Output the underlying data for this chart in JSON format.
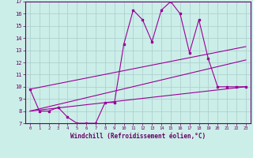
{
  "title": "",
  "xlabel": "Windchill (Refroidissement éolien,°C)",
  "ylabel": "",
  "background_color": "#cceee8",
  "grid_color": "#aacccc",
  "line_color": "#990099",
  "xlim": [
    -0.5,
    23.5
  ],
  "ylim": [
    7,
    17
  ],
  "yticks": [
    7,
    8,
    9,
    10,
    11,
    12,
    13,
    14,
    15,
    16,
    17
  ],
  "xticks": [
    0,
    1,
    2,
    3,
    4,
    5,
    6,
    7,
    8,
    9,
    10,
    11,
    12,
    13,
    14,
    15,
    16,
    17,
    18,
    19,
    20,
    21,
    22,
    23
  ],
  "series1_x": [
    0,
    1,
    2,
    3,
    4,
    5,
    6,
    7,
    8,
    9,
    10,
    11,
    12,
    13,
    14,
    15,
    16,
    17,
    18,
    19,
    20,
    21,
    22,
    23
  ],
  "series1_y": [
    9.8,
    8.0,
    8.0,
    8.3,
    7.5,
    7.0,
    7.0,
    7.0,
    8.7,
    8.7,
    13.5,
    16.3,
    15.5,
    13.7,
    16.3,
    17.0,
    16.0,
    12.8,
    15.5,
    12.3,
    10.0,
    10.0,
    10.0,
    10.0
  ],
  "series2_x": [
    0,
    23
  ],
  "series2_y": [
    8.0,
    12.2
  ],
  "series3_x": [
    0,
    23
  ],
  "series3_y": [
    8.0,
    10.0
  ],
  "series4_x": [
    0,
    23
  ],
  "series4_y": [
    9.8,
    13.3
  ]
}
